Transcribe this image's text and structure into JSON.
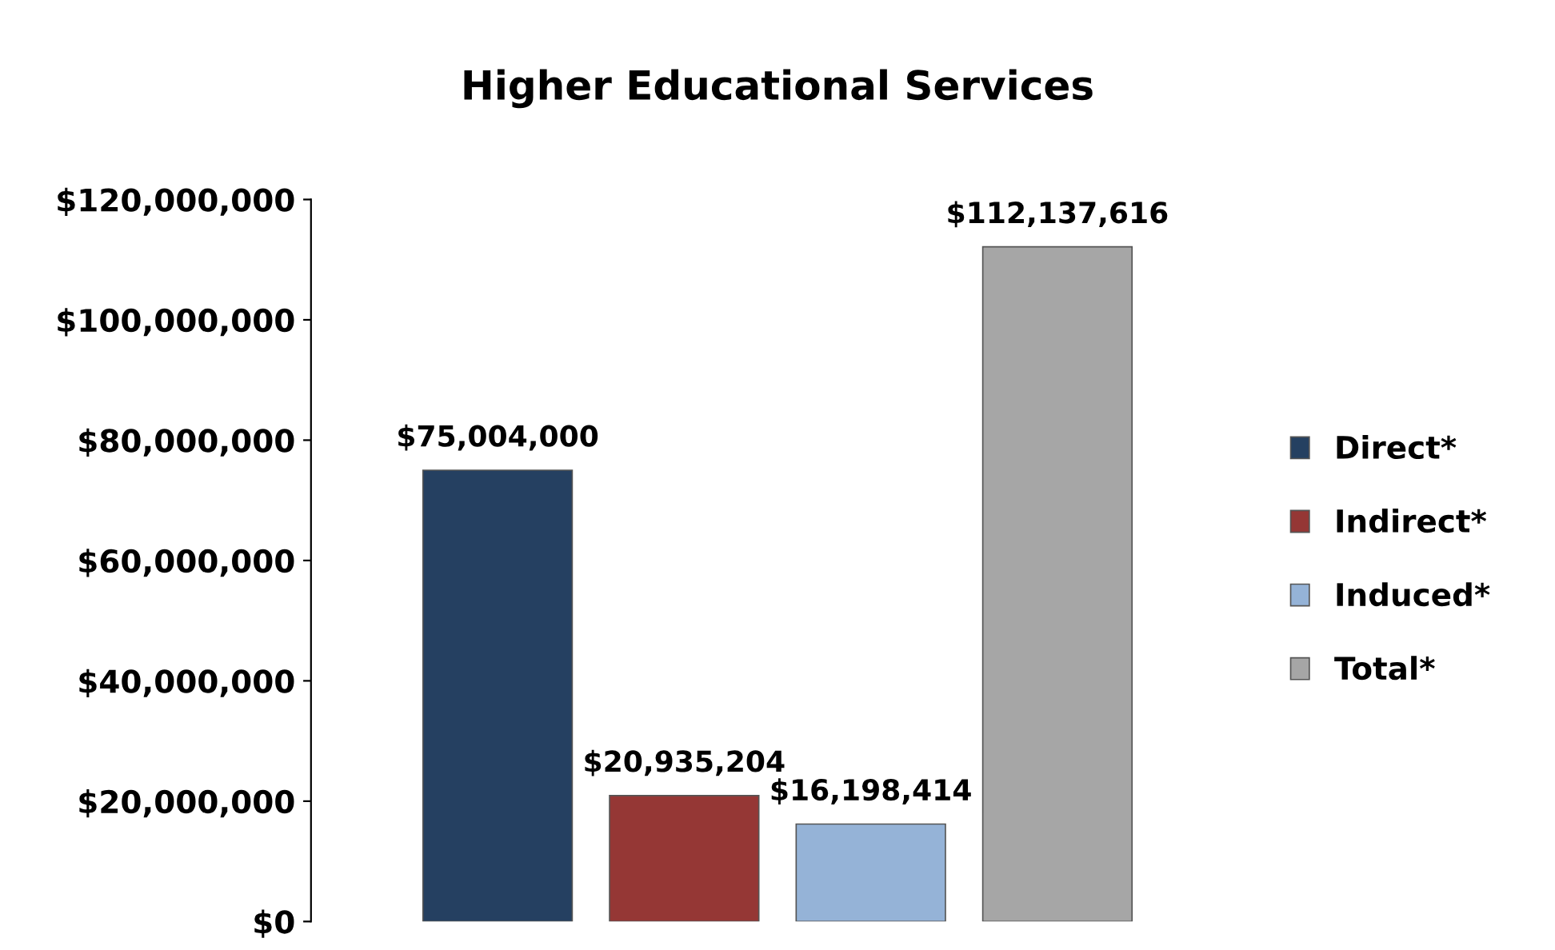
{
  "chart_data": {
    "type": "bar",
    "title": "Higher Educational Services",
    "categories": [
      null
    ],
    "series": [
      {
        "name": "Direct*",
        "color": "#254061",
        "values": [
          75004000
        ],
        "value_labels": [
          "$75,004,000"
        ]
      },
      {
        "name": "Indirect*",
        "color": "#953735",
        "values": [
          20935204
        ],
        "value_labels": [
          "$20,935,204"
        ]
      },
      {
        "name": "Induced*",
        "color": "#95b3d7",
        "values": [
          16198414
        ],
        "value_labels": [
          "$16,198,414"
        ]
      },
      {
        "name": "Total*",
        "color": "#a6a6a6",
        "values": [
          112137616
        ],
        "value_labels": [
          "$112,137,616"
        ]
      }
    ],
    "ylim": [
      0,
      120000000
    ],
    "yticks": [
      {
        "value": 0,
        "label": "$0"
      },
      {
        "value": 20000000,
        "label": "$20,000,000"
      },
      {
        "value": 40000000,
        "label": "$40,000,000"
      },
      {
        "value": 60000000,
        "label": "$60,000,000"
      },
      {
        "value": 80000000,
        "label": "$80,000,000"
      },
      {
        "value": 100000000,
        "label": "$100,000,000"
      },
      {
        "value": 120000000,
        "label": "$120,000,000"
      }
    ],
    "grid": false,
    "legend": "right"
  }
}
